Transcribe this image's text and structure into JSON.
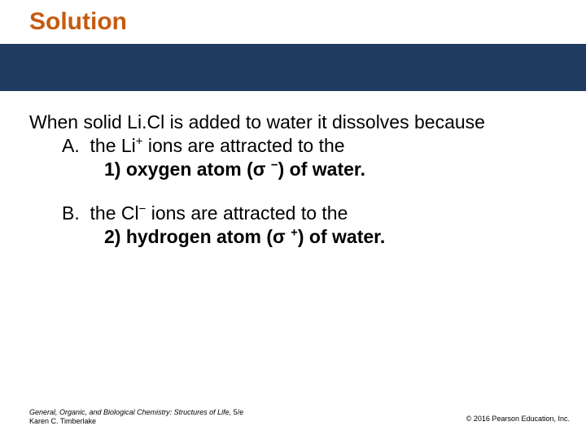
{
  "colors": {
    "title": "#c55a11",
    "band": "#1f3b60",
    "text": "#000000",
    "background": "#ffffff"
  },
  "title": "Solution",
  "body": {
    "intro": "When solid Li.Cl is added to water it dissolves because",
    "A": {
      "label": "A.",
      "line1_pre": "the Li",
      "line1_sup": "+",
      "line1_post": " ions are attracted to the",
      "answer_num": "1)",
      "answer_pre": " oxygen atom (σ ",
      "answer_sup": "−",
      "answer_post": ") of water."
    },
    "B": {
      "label": "B.",
      "line1_pre": "the Cl",
      "line1_sup": "−",
      "line1_post": " ions are attracted to the",
      "answer_num": "2)",
      "answer_pre": " hydrogen atom (σ ",
      "answer_sup": "+",
      "answer_post": ") of water."
    }
  },
  "footer": {
    "book": "General, Organic, and Biological Chemistry: Structures of Life,",
    "edition": " 5/e",
    "author": "Karen C. Timberlake",
    "copyright": "© 2016 Pearson Education, Inc."
  }
}
